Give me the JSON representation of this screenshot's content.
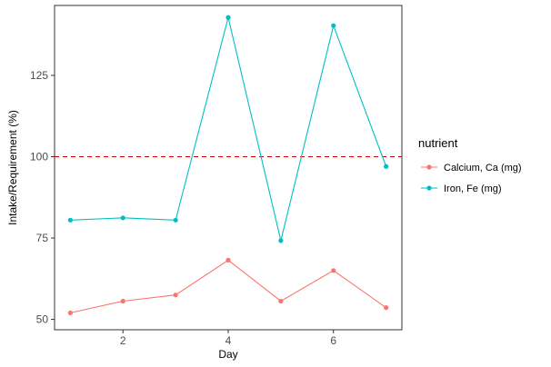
{
  "chart_data": {
    "type": "line",
    "title": "",
    "xlabel": "Day",
    "ylabel": "Intake/Requirement (%)",
    "x": [
      1,
      2,
      3,
      4,
      5,
      6,
      7
    ],
    "xlim": [
      0.7,
      7.3
    ],
    "ylim": [
      46.8,
      146.5
    ],
    "x_ticks": [
      2,
      4,
      6
    ],
    "x_tick_labels": [
      "2",
      "4",
      "6"
    ],
    "y_ticks": [
      50,
      75,
      100,
      125
    ],
    "y_tick_labels": [
      "50",
      "75",
      "100",
      "125"
    ],
    "grid": false,
    "reference_line": {
      "y": 100,
      "style": "dashed",
      "color": "#cc0000"
    },
    "legend": {
      "title": "nutrient",
      "position": "right"
    },
    "series": [
      {
        "name": "Calcium, Ca (mg)",
        "color": "#f8766d",
        "values": [
          52.0,
          55.6,
          57.5,
          68.2,
          55.6,
          65.0,
          53.6
        ]
      },
      {
        "name": "Iron, Fe (mg)",
        "color": "#00bfc4",
        "values": [
          80.5,
          81.2,
          80.5,
          142.8,
          74.2,
          140.3,
          97.0
        ]
      }
    ]
  }
}
